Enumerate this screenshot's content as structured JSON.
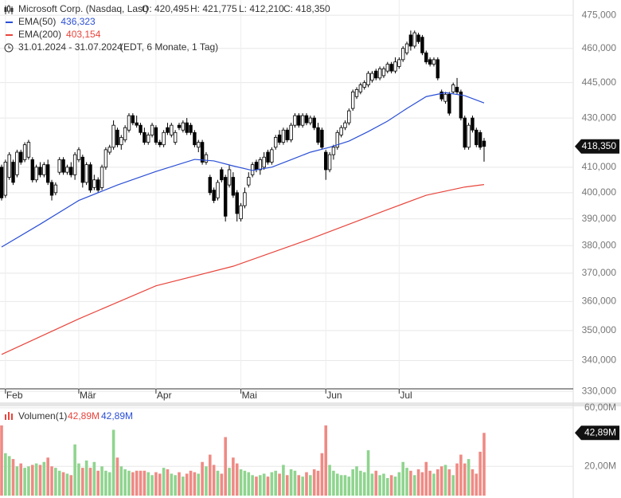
{
  "chart_data": {
    "type": "candlestick",
    "title": "Microsoft Corp. (Nasdaq, Last)",
    "ohlc_labels": [
      "O: 420,495",
      "H: 421,775",
      "L: 412,210",
      "C: 418,350"
    ],
    "date_range": "31.01.2024 - 31.07.2024",
    "range_note": "(EDT, 6 Monate, 1 Tag)",
    "last_label": "418,350",
    "categories": [
      null,
      "Feb",
      null,
      null,
      null,
      null,
      null,
      null,
      null,
      null,
      null,
      null,
      null,
      null,
      null,
      null,
      null,
      null,
      null,
      null,
      "Mär",
      null,
      null,
      null,
      null,
      null,
      null,
      null,
      null,
      null,
      null,
      null,
      null,
      null,
      null,
      null,
      null,
      null,
      null,
      null,
      "Apr",
      null,
      null,
      null,
      null,
      null,
      null,
      null,
      null,
      null,
      null,
      null,
      null,
      null,
      null,
      null,
      null,
      null,
      null,
      null,
      null,
      null,
      "Mai",
      null,
      null,
      null,
      null,
      null,
      null,
      null,
      null,
      null,
      null,
      null,
      null,
      null,
      null,
      null,
      null,
      null,
      null,
      null,
      null,
      null,
      "Jun",
      null,
      null,
      null,
      null,
      null,
      null,
      null,
      null,
      null,
      null,
      null,
      null,
      null,
      null,
      null,
      null,
      null,
      null,
      "Jul",
      null,
      null,
      null,
      null,
      null,
      null,
      null,
      null,
      null,
      null,
      null,
      null,
      null,
      null,
      null,
      null,
      null,
      null,
      null,
      null,
      null,
      null
    ],
    "open": [
      410,
      399,
      406,
      412,
      407,
      416,
      413,
      414,
      413,
      405,
      410,
      407,
      411,
      404,
      400,
      408,
      413,
      408,
      410,
      407,
      413,
      414,
      404,
      411,
      402,
      405,
      402,
      410,
      416,
      418,
      425,
      419,
      421,
      425,
      431,
      428,
      427,
      424,
      420,
      423,
      426,
      420,
      419,
      426,
      423,
      420,
      427,
      425,
      428,
      427,
      424,
      418,
      420,
      412,
      406,
      401,
      398,
      409,
      406,
      403,
      406,
      400,
      390,
      395,
      403,
      407,
      412,
      409,
      410,
      416,
      412,
      418,
      423,
      420,
      425,
      421,
      427,
      431,
      427,
      431,
      428,
      430,
      426,
      425,
      416,
      409,
      415,
      418,
      423,
      426,
      428,
      434,
      439,
      441,
      443,
      444,
      446,
      450,
      447,
      448,
      450,
      453,
      450,
      452,
      455,
      458,
      466,
      461,
      466,
      465,
      458,
      455,
      453,
      455,
      441,
      437,
      440,
      441,
      443,
      441,
      430,
      418,
      430,
      425,
      424,
      420.495
    ],
    "high": [
      411,
      413,
      416,
      413,
      417,
      417,
      420,
      421,
      414,
      411,
      412,
      412,
      413,
      405,
      404,
      414,
      414,
      411,
      412,
      416,
      418,
      415,
      412,
      412,
      407,
      406,
      411,
      418,
      419,
      429,
      426,
      423,
      427,
      432,
      432,
      431,
      428,
      426,
      424,
      428,
      427,
      421,
      425,
      428,
      428,
      425,
      428,
      429,
      430,
      428,
      425,
      421,
      421,
      416,
      407,
      402,
      405,
      410,
      407,
      411,
      408,
      401,
      396,
      402,
      408,
      412,
      413,
      414,
      416,
      417,
      418,
      423,
      425,
      426,
      426,
      428,
      432,
      432,
      432,
      432,
      431,
      431,
      428,
      426,
      417,
      416,
      419,
      425,
      427,
      429,
      434,
      442,
      443,
      445,
      446,
      450,
      450,
      451,
      452,
      452,
      454,
      454,
      456,
      456,
      461,
      463,
      468,
      468,
      467,
      466,
      459,
      456,
      456,
      456,
      442,
      441,
      441,
      445,
      447,
      442,
      431,
      428,
      431,
      426,
      425,
      421.775
    ],
    "low": [
      397,
      398,
      405,
      403,
      406,
      411,
      412,
      413,
      404,
      404,
      406,
      406,
      403,
      397,
      399,
      407,
      407,
      407,
      406,
      405,
      412,
      402,
      403,
      400,
      401,
      400,
      401,
      409,
      415,
      417,
      418,
      417,
      420,
      424,
      427,
      426,
      423,
      419,
      419,
      422,
      419,
      418,
      418,
      423,
      422,
      419,
      425,
      424,
      423,
      423,
      418,
      416,
      411,
      411,
      399,
      396,
      397,
      404,
      389,
      402,
      398,
      389,
      389,
      394,
      402,
      406,
      408,
      407,
      409,
      411,
      411,
      417,
      419,
      419,
      420,
      420,
      426,
      426,
      426,
      427,
      427,
      425,
      419,
      417,
      405,
      408,
      413,
      417,
      422,
      425,
      427,
      433,
      438,
      440,
      442,
      443,
      445,
      446,
      446,
      447,
      449,
      449,
      449,
      451,
      454,
      457,
      459,
      460,
      462,
      457,
      453,
      452,
      452,
      446,
      437,
      436,
      431,
      440,
      440,
      429,
      417,
      417,
      424,
      418,
      417,
      412.21
    ],
    "close": [
      398,
      412,
      415,
      404,
      416,
      412,
      419,
      420,
      405,
      410,
      407,
      411,
      404,
      399,
      403,
      413,
      408,
      410,
      407,
      415,
      417,
      404,
      411,
      401,
      405,
      401,
      410,
      417,
      418,
      427,
      419,
      422,
      426,
      431,
      428,
      427,
      424,
      420,
      423,
      427,
      420,
      419,
      424,
      424,
      427,
      424,
      426,
      428,
      424,
      424,
      419,
      420,
      412,
      415,
      400,
      397,
      404,
      405,
      391,
      409,
      399,
      392,
      395,
      400,
      406,
      411,
      409,
      413,
      414,
      412,
      417,
      422,
      420,
      425,
      421,
      427,
      431,
      427,
      431,
      428,
      430,
      426,
      420,
      418,
      409,
      415,
      418,
      424,
      426,
      428,
      433,
      441,
      442,
      444,
      445,
      449,
      449,
      447,
      451,
      451,
      453,
      450,
      454,
      455,
      460,
      462,
      461,
      467,
      463,
      458,
      454,
      453,
      455,
      447,
      438,
      440,
      432,
      444,
      441,
      430,
      418,
      427,
      425,
      419,
      418,
      418.35
    ],
    "up_color": "#ffffff",
    "down_color": "#000000",
    "series": [
      {
        "name": "EMA(50)",
        "color": "#2a4fd6",
        "value_label": "436,323",
        "x": [
          0,
          10,
          20,
          30,
          40,
          50,
          55,
          60,
          65,
          70,
          75,
          80,
          85,
          90,
          95,
          100,
          105,
          110,
          115,
          120,
          125
        ],
        "values": [
          379.5,
          388,
          397,
          403,
          408.3,
          413.1,
          412.5,
          410.5,
          408.7,
          410,
          413,
          416,
          418,
          420.5,
          424.4,
          428.7,
          434,
          439,
          440.7,
          439.4,
          436.323
        ]
      },
      {
        "name": "EMA(200)",
        "color": "#e8453c",
        "value_label": "403,154",
        "x": [
          0,
          20,
          40,
          60,
          80,
          100,
          110,
          120,
          125
        ],
        "values": [
          342,
          354,
          365.5,
          372.5,
          382.5,
          393.5,
          399,
          402.2,
          403.154
        ]
      }
    ],
    "log": true,
    "grid": true,
    "ylim": [
      330.8,
      480.2
    ],
    "yticks": [
      {
        "value": 330,
        "label": "330,000"
      },
      {
        "value": 340,
        "label": "340,000"
      },
      {
        "value": 350,
        "label": "350,000"
      },
      {
        "value": 360,
        "label": "360,000"
      },
      {
        "value": 370,
        "label": "370,000"
      },
      {
        "value": 380,
        "label": "380,000"
      },
      {
        "value": 390,
        "label": "390,000"
      },
      {
        "value": 400,
        "label": "400,000"
      },
      {
        "value": 410,
        "label": "410,000"
      },
      {
        "value": 430,
        "label": "430,000"
      },
      {
        "value": 445,
        "label": "445,000"
      },
      {
        "value": 460,
        "label": "460,000"
      },
      {
        "value": 475,
        "label": "475,000"
      }
    ],
    "volume": {
      "name": "Volumen(1)",
      "legend_labels": [
        "42,89M",
        "42,89M"
      ],
      "last_label": "42,89M",
      "up_color": "#8fd48f",
      "down_color": "#ef8a84",
      "ylim": [
        0,
        61
      ],
      "yticks": [
        {
          "value": 20,
          "label": "20,00M"
        },
        {
          "value": 60,
          "label": "60,00M"
        }
      ],
      "values": [
        48,
        29,
        27,
        25,
        20,
        22,
        19,
        20,
        21,
        22,
        21,
        23,
        26,
        20,
        19,
        17,
        16,
        15,
        14,
        35,
        22,
        19,
        24,
        19,
        23,
        17,
        20,
        17,
        16,
        45,
        26,
        20,
        18,
        17,
        16,
        17,
        17,
        17,
        16,
        14,
        16,
        15,
        19,
        18,
        15,
        14,
        16,
        13,
        15,
        17,
        16,
        15,
        23,
        20,
        28,
        21,
        17,
        15,
        40,
        19,
        26,
        22,
        18,
        17,
        16,
        14,
        13,
        14,
        15,
        13,
        16,
        17,
        15,
        21,
        14,
        18,
        17,
        14,
        13,
        16,
        14,
        18,
        17,
        29,
        48,
        21,
        17,
        15,
        14,
        14,
        13,
        18,
        20,
        17,
        16,
        31,
        15,
        17,
        14,
        15,
        12,
        14,
        13,
        16,
        23,
        19,
        17,
        14,
        18,
        16,
        23,
        17,
        15,
        18,
        20,
        21,
        18,
        14,
        22,
        28,
        22,
        25,
        18,
        15,
        30,
        42.89
      ]
    }
  }
}
